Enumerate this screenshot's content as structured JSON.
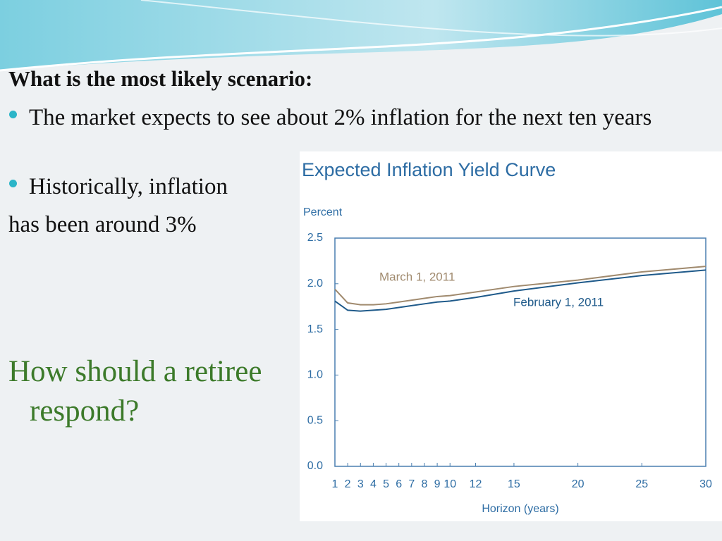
{
  "slide": {
    "heading": "What is the most likely scenario:",
    "bullets": [
      "The market expects to see about 2% inflation for the next ten years",
      "Historically, inflation"
    ],
    "continuation": "has been around 3%",
    "question": "How should a retiree respond?"
  },
  "chart_data": {
    "type": "line",
    "title": "Expected Inflation Yield Curve",
    "y_label": "Percent",
    "x_label": "Horizon (years)",
    "x": [
      1,
      2,
      3,
      4,
      5,
      6,
      7,
      8,
      9,
      10,
      12,
      15,
      20,
      25,
      30
    ],
    "series": [
      {
        "name": "March 1, 2011",
        "color": "#a08a6e",
        "values": [
          1.94,
          1.79,
          1.77,
          1.77,
          1.78,
          1.8,
          1.82,
          1.84,
          1.86,
          1.87,
          1.91,
          1.97,
          2.04,
          2.13,
          2.19
        ]
      },
      {
        "name": "February 1, 2011",
        "color": "#1f5a8a",
        "values": [
          1.81,
          1.71,
          1.7,
          1.71,
          1.72,
          1.74,
          1.76,
          1.78,
          1.8,
          1.81,
          1.85,
          1.92,
          2.01,
          2.09,
          2.15
        ]
      }
    ],
    "xlim": [
      1,
      30
    ],
    "xticks": [
      1,
      2,
      3,
      4,
      5,
      6,
      7,
      8,
      9,
      10,
      12,
      15,
      20,
      25,
      30
    ],
    "ylim": [
      0,
      2.5
    ],
    "yticks": [
      {
        "value": 0,
        "label": "0.0"
      },
      0.5,
      {
        "value": 1,
        "label": "1.0"
      },
      1.5,
      {
        "value": 2,
        "label": "2.0"
      },
      2.5
    ]
  }
}
